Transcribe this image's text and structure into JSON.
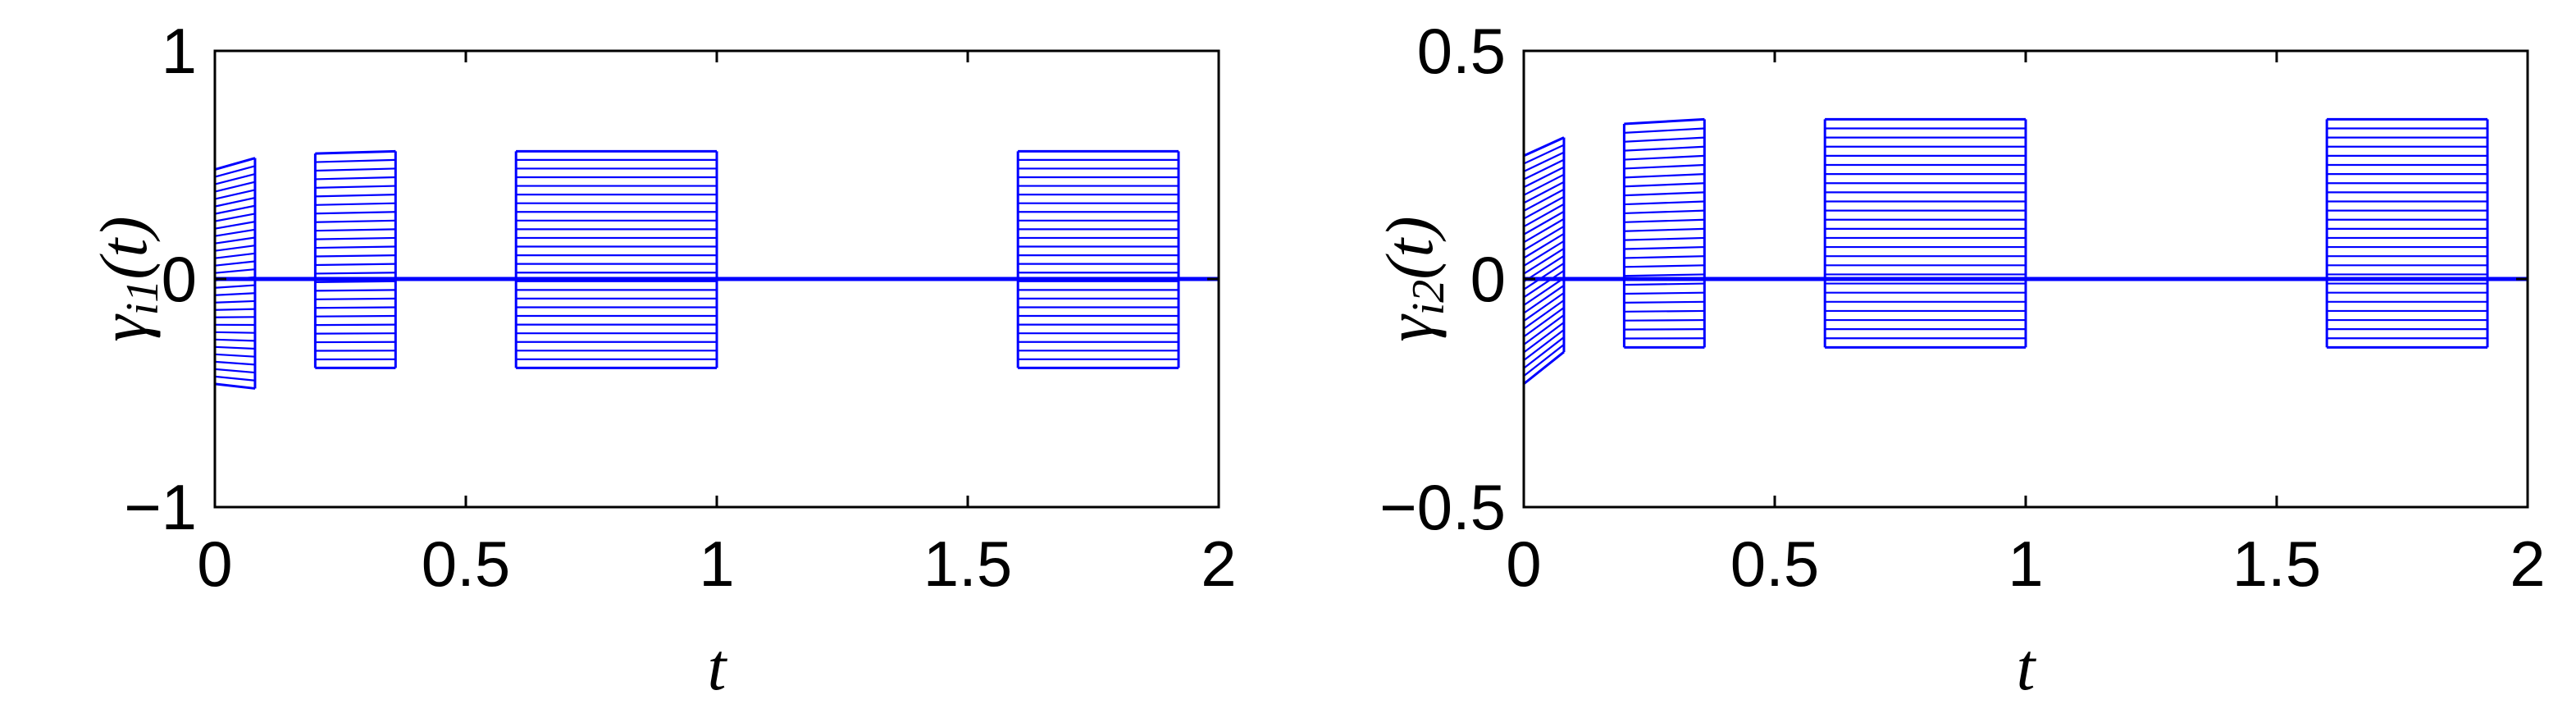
{
  "chart_data": [
    {
      "type": "line",
      "xlabel": "t",
      "ylabel": {
        "main": "γ",
        "sub": "i1",
        "arg": "(t)"
      },
      "xlim": [
        0,
        2
      ],
      "ylim": [
        -1,
        1
      ],
      "xticks": [
        "0",
        "0.5",
        "1",
        "1.5",
        "2"
      ],
      "xtick_values": [
        0,
        0.5,
        1,
        1.5,
        2
      ],
      "yticks": [
        "−1",
        "0",
        "1"
      ],
      "ytick_values": [
        -1,
        0,
        1
      ],
      "grid": false,
      "color": "#0000ff",
      "baseline": 0,
      "active_intervals": [
        {
          "start": 0.0,
          "end": 0.08,
          "y_top": 0.53,
          "y_bottom": -0.48,
          "y_top_start": 0.48,
          "y_bottom_start": -0.46,
          "levels": 30
        },
        {
          "start": 0.2,
          "end": 0.36,
          "y_top": 0.56,
          "y_bottom": -0.39,
          "y_top_start": 0.55,
          "y_bottom_start": -0.39,
          "levels": 26
        },
        {
          "start": 0.6,
          "end": 1.0,
          "y_top": 0.56,
          "y_bottom": -0.39,
          "y_top_start": 0.56,
          "y_bottom_start": -0.39,
          "levels": 26
        },
        {
          "start": 1.6,
          "end": 1.92,
          "y_top": 0.56,
          "y_bottom": -0.39,
          "y_top_start": 0.56,
          "y_bottom_start": -0.39,
          "levels": 26
        }
      ]
    },
    {
      "type": "line",
      "xlabel": "t",
      "ylabel": {
        "main": "γ",
        "sub": "i2",
        "arg": "(t)"
      },
      "xlim": [
        0,
        2
      ],
      "ylim": [
        -0.5,
        0.5
      ],
      "xticks": [
        "0",
        "0.5",
        "1",
        "1.5",
        "2"
      ],
      "xtick_values": [
        0,
        0.5,
        1,
        1.5,
        2
      ],
      "yticks": [
        "−0.5",
        "0",
        "0.5"
      ],
      "ytick_values": [
        -0.5,
        0,
        0.5
      ],
      "grid": false,
      "color": "#0000ff",
      "baseline": 0,
      "active_intervals": [
        {
          "start": 0.0,
          "end": 0.08,
          "y_top": 0.31,
          "y_bottom": -0.16,
          "y_top_start": 0.27,
          "y_bottom_start": -0.23,
          "levels": 30
        },
        {
          "start": 0.2,
          "end": 0.36,
          "y_top": 0.35,
          "y_bottom": -0.15,
          "y_top_start": 0.34,
          "y_bottom_start": -0.15,
          "levels": 26
        },
        {
          "start": 0.6,
          "end": 1.0,
          "y_top": 0.35,
          "y_bottom": -0.15,
          "y_top_start": 0.35,
          "y_bottom_start": -0.15,
          "levels": 26
        },
        {
          "start": 1.6,
          "end": 1.92,
          "y_top": 0.35,
          "y_bottom": -0.15,
          "y_top_start": 0.35,
          "y_bottom_start": -0.15,
          "levels": 26
        }
      ]
    }
  ]
}
